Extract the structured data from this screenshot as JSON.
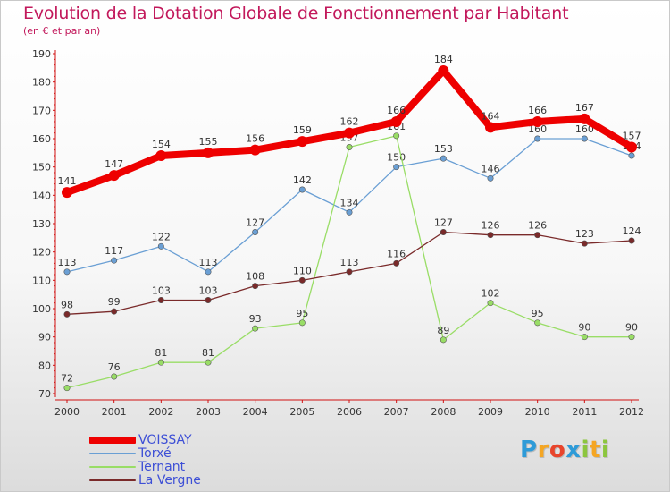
{
  "title": "Evolution de la Dotation Globale de Fonctionnement par Habitant",
  "subtitle": "(en € et par an)",
  "logo": {
    "letters": [
      "P",
      "r",
      "o",
      "x",
      "i",
      "t",
      "i"
    ],
    "colors": [
      "#2e9bd8",
      "#f5a623",
      "#e8452c",
      "#2e9bd8",
      "#8cc63f",
      "#f5a623",
      "#8cc63f"
    ]
  },
  "chart_data": {
    "type": "line",
    "title": "Evolution de la Dotation Globale de Fonctionnement par Habitant",
    "ylabel": "(en € et par an)",
    "xlabel": "",
    "x": [
      "2000",
      "2001",
      "2002",
      "2003",
      "2004",
      "2005",
      "2006",
      "2007",
      "2008",
      "2009",
      "2010",
      "2011",
      "2012"
    ],
    "ylim": [
      70,
      190
    ],
    "yticks": [
      70,
      80,
      90,
      100,
      110,
      120,
      130,
      140,
      150,
      160,
      170,
      180,
      190
    ],
    "grid": false,
    "legend_position": "bottom-left",
    "series": [
      {
        "name": "VOISSAY",
        "color": "#ee0000",
        "width": 8,
        "marker": 6,
        "values": [
          141,
          147,
          154,
          155,
          156,
          159,
          162,
          166,
          184,
          164,
          166,
          167,
          157
        ]
      },
      {
        "name": "Torxé",
        "color": "#6a9fd4",
        "width": 1.3,
        "marker": 3.2,
        "values": [
          113,
          117,
          122,
          113,
          127,
          142,
          134,
          150,
          153,
          146,
          160,
          160,
          154
        ]
      },
      {
        "name": "Ternant",
        "color": "#99dd66",
        "width": 1.3,
        "marker": 3.2,
        "values": [
          72,
          76,
          81,
          81,
          93,
          95,
          157,
          161,
          89,
          102,
          95,
          90,
          90
        ]
      },
      {
        "name": "La Vergne",
        "color": "#7a2a2a",
        "width": 1.3,
        "marker": 3.2,
        "values": [
          98,
          99,
          103,
          103,
          108,
          110,
          113,
          116,
          127,
          126,
          126,
          123,
          124
        ]
      }
    ]
  }
}
